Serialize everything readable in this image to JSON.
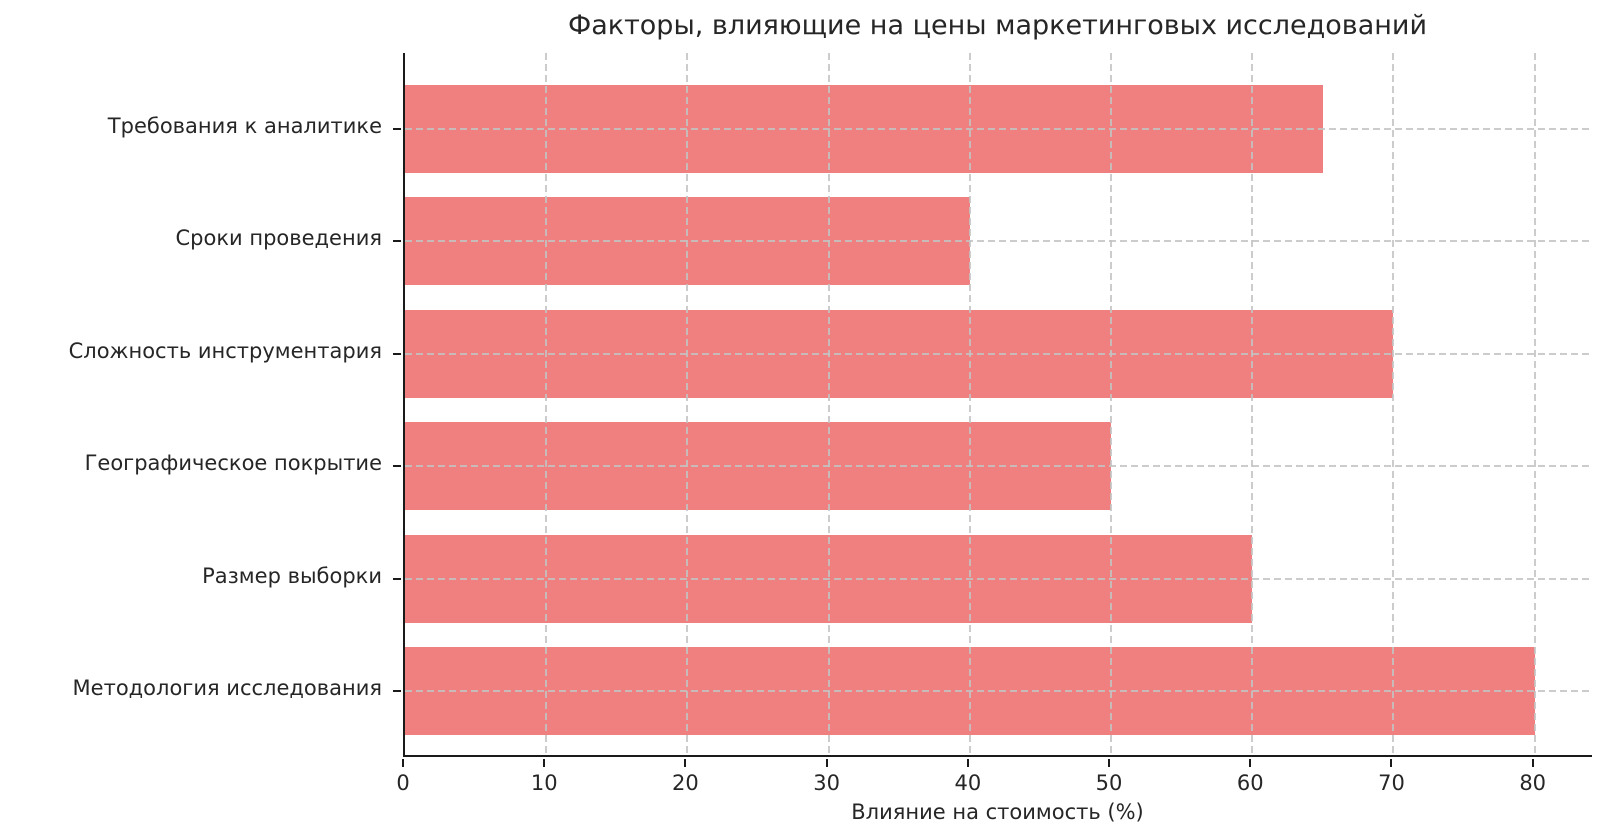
{
  "chart_data": {
    "type": "bar",
    "orientation": "horizontal",
    "title": "Факторы, влияющие на цены маркетинговых исследований",
    "xlabel": "Влияние на стоимость (%)",
    "categories": [
      "Требования к аналитике",
      "Сроки проведения",
      "Сложность инструментария",
      "Географическое покрытие",
      "Размер выборки",
      "Методология исследования"
    ],
    "values": [
      65,
      40,
      70,
      50,
      60,
      80
    ],
    "xticks": [
      0,
      10,
      20,
      30,
      40,
      50,
      60,
      70,
      80
    ],
    "xlim": [
      0,
      84.2
    ],
    "ylabel": "",
    "grid": true,
    "grid_style": "dashed",
    "legend": "none",
    "colors": {
      "bar": "#f08080",
      "grid": "#c3c3c3",
      "spine": "#1a1a1a",
      "text": "#262626",
      "background": "#ffffff"
    }
  }
}
